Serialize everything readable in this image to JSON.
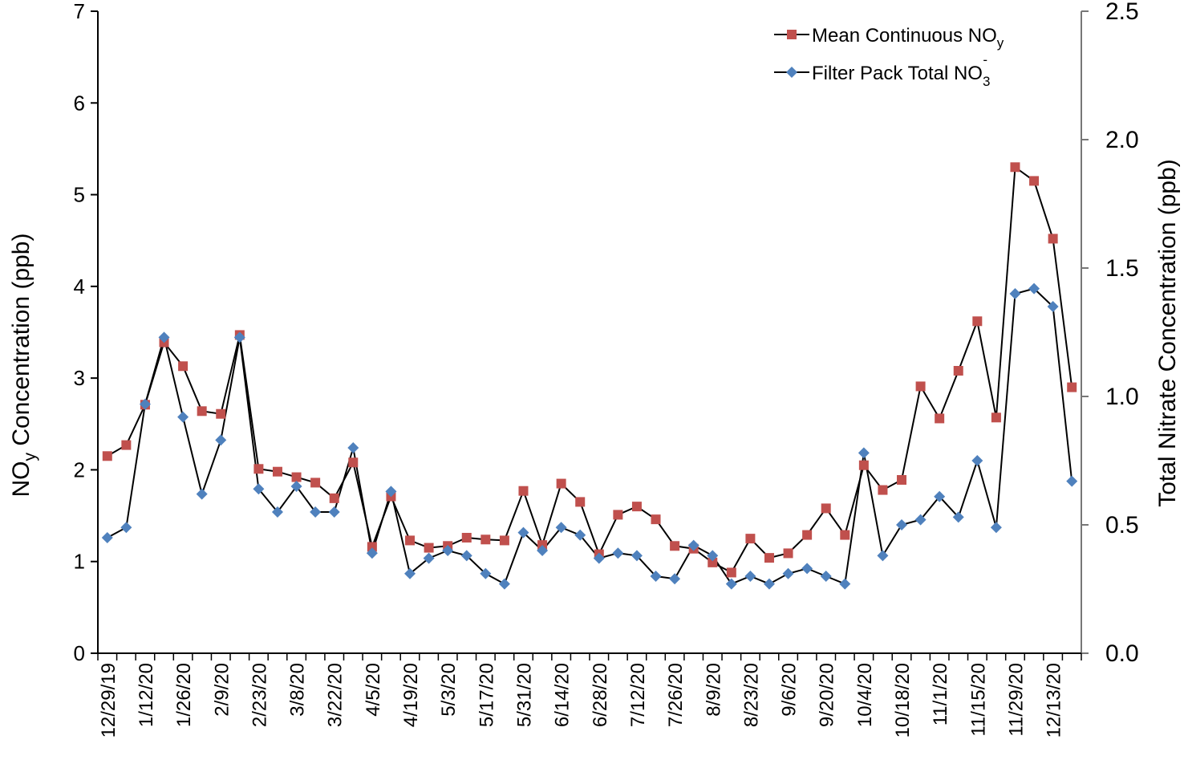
{
  "chart_data": {
    "type": "line",
    "title": "",
    "ylabel_left": "NOy Concentration (ppb)",
    "ylabel_left_parts": {
      "pre": "NO",
      "sub": "y",
      "post": " Concentration (ppb)"
    },
    "ylabel_right": "Total Nitrate Concentration (ppb)",
    "ylim_left": [
      0,
      7
    ],
    "ylim_right": [
      0,
      2.5
    ],
    "yticks_left": [
      "0",
      "1",
      "2",
      "3",
      "4",
      "5",
      "6",
      "7"
    ],
    "yticks_right": [
      "0.0",
      "0.5",
      "1.0",
      "1.5",
      "2.0",
      "2.5"
    ],
    "x_tick_labels": [
      "12/29/19",
      "1/12/20",
      "1/26/20",
      "2/9/20",
      "2/23/20",
      "3/8/20",
      "3/22/20",
      "4/5/20",
      "4/19/20",
      "5/3/20",
      "5/17/20",
      "5/31/20",
      "6/14/20",
      "6/28/20",
      "7/12/20",
      "7/26/20",
      "8/9/20",
      "8/23/20",
      "9/6/20",
      "9/20/20",
      "10/4/20",
      "10/18/20",
      "11/1/20",
      "11/15/20",
      "11/29/20",
      "12/13/20"
    ],
    "num_weeks": 52,
    "legend": {
      "position": "top-right",
      "nox": {
        "pre": "Mean Continuous NO",
        "sub": "y"
      },
      "nitrate": {
        "pre": "Filter Pack Total NO",
        "sub": "3",
        "sup": "-"
      }
    },
    "series": [
      {
        "name": "Mean Continuous NOy",
        "axis": "left",
        "marker": "square",
        "color": "#C0504D",
        "values": [
          2.15,
          2.27,
          2.71,
          3.39,
          3.13,
          2.64,
          2.61,
          3.47,
          2.01,
          1.98,
          1.92,
          1.86,
          1.69,
          2.08,
          1.16,
          1.71,
          1.23,
          1.15,
          1.17,
          1.26,
          1.24,
          1.23,
          1.77,
          1.18,
          1.85,
          1.65,
          1.08,
          1.51,
          1.6,
          1.46,
          1.17,
          1.14,
          0.99,
          0.88,
          1.25,
          1.04,
          1.09,
          1.29,
          1.58,
          1.29,
          2.05,
          1.78,
          1.89,
          2.91,
          2.56,
          3.08,
          3.62,
          2.57,
          5.3,
          5.15,
          4.52,
          2.9
        ]
      },
      {
        "name": "Filter Pack Total NO3-",
        "axis": "right",
        "marker": "diamond",
        "color": "#4F81BD",
        "values": [
          0.45,
          0.49,
          0.97,
          1.23,
          0.92,
          0.62,
          0.83,
          1.23,
          0.64,
          0.55,
          0.65,
          0.55,
          0.55,
          0.8,
          0.39,
          0.63,
          0.31,
          0.37,
          0.4,
          0.38,
          0.31,
          0.27,
          0.47,
          0.4,
          0.49,
          0.46,
          0.37,
          0.39,
          0.38,
          0.3,
          0.29,
          0.42,
          0.38,
          0.27,
          0.3,
          0.27,
          0.31,
          0.33,
          0.3,
          0.27,
          0.78,
          0.38,
          0.5,
          0.52,
          0.61,
          0.53,
          0.75,
          0.49,
          1.4,
          1.42,
          1.35,
          0.67
        ]
      }
    ]
  }
}
